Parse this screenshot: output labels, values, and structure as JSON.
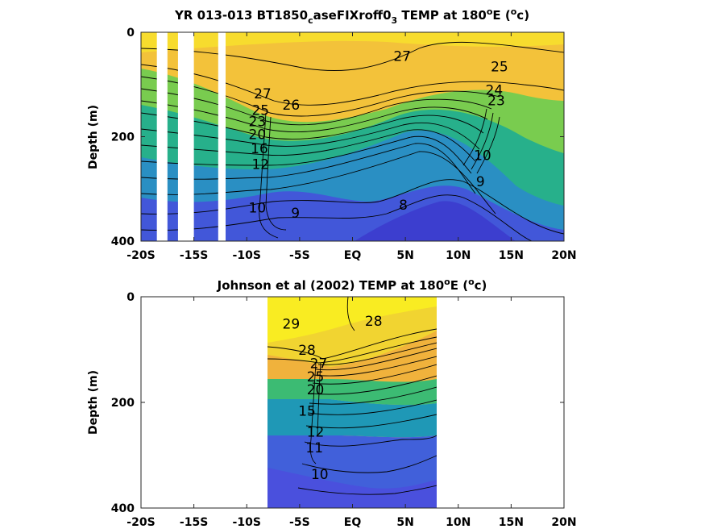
{
  "chart_data": [
    {
      "type": "heatmap",
      "title": "YR 013-013 BT1850",
      "title_sub": "c",
      "title_mid": "aseFIXroff0",
      "title_sub2": "3",
      "title_tail": " TEMP at 180",
      "title_sup": "o",
      "title_end": "E (",
      "title_sup2": "o",
      "title_close": "c)",
      "ylabel": "Depth (m)",
      "xlim": [
        -20,
        20
      ],
      "ylim": [
        0,
        400
      ],
      "y_reversed": true,
      "x_ticks": [
        -20,
        -15,
        -10,
        -5,
        0,
        5,
        10,
        15,
        20
      ],
      "x_tick_labels": [
        "-20S",
        "-15S",
        "-10S",
        "-5S",
        "EQ",
        "5N",
        "10N",
        "15N",
        "20N"
      ],
      "y_ticks": [
        0,
        200,
        400
      ],
      "y_tick_labels": [
        "0",
        "200",
        "400"
      ],
      "data_extent": [
        -20,
        20
      ],
      "missing_lat_bands": [
        [
          -18.5,
          -17.5
        ],
        [
          -16.5,
          -15.0
        ],
        [
          -12.7,
          -12.0
        ]
      ],
      "contour_interval": 1,
      "contour_labels": [
        {
          "lat": 4.7,
          "depth": 55,
          "text": "27"
        },
        {
          "lat": 13.9,
          "depth": 75,
          "text": "25"
        },
        {
          "lat": 13.4,
          "depth": 120,
          "text": "24"
        },
        {
          "lat": 13.6,
          "depth": 140,
          "text": "23"
        },
        {
          "lat": -8.5,
          "depth": 127,
          "text": "27"
        },
        {
          "lat": -8.7,
          "depth": 158,
          "text": "25"
        },
        {
          "lat": -5.8,
          "depth": 148,
          "text": "26"
        },
        {
          "lat": -9.0,
          "depth": 180,
          "text": "23"
        },
        {
          "lat": -9.0,
          "depth": 205,
          "text": "20"
        },
        {
          "lat": -8.8,
          "depth": 232,
          "text": "16"
        },
        {
          "lat": -8.7,
          "depth": 262,
          "text": "12"
        },
        {
          "lat": -9.0,
          "depth": 345,
          "text": "10"
        },
        {
          "lat": -5.4,
          "depth": 355,
          "text": "9"
        },
        {
          "lat": 4.8,
          "depth": 340,
          "text": "8"
        },
        {
          "lat": 12.1,
          "depth": 295,
          "text": "9"
        },
        {
          "lat": 12.3,
          "depth": 245,
          "text": "10"
        }
      ]
    },
    {
      "type": "heatmap",
      "title": "Johnson et al (2002) TEMP at 180",
      "title_sup": "o",
      "title_end": "E (",
      "title_sup2": "o",
      "title_close": "c)",
      "ylabel": "Depth (m)",
      "xlim": [
        -20,
        20
      ],
      "ylim": [
        0,
        400
      ],
      "y_reversed": true,
      "x_ticks": [
        -20,
        -15,
        -10,
        -5,
        0,
        5,
        10,
        15,
        20
      ],
      "x_tick_labels": [
        "-20S",
        "-15S",
        "-10S",
        "-5S",
        "EQ",
        "5N",
        "10N",
        "15N",
        "20N"
      ],
      "y_ticks": [
        0,
        200,
        400
      ],
      "y_tick_labels": [
        "0",
        "200",
        "400"
      ],
      "data_extent": [
        -8,
        8
      ],
      "contour_interval": 1,
      "contour_labels": [
        {
          "lat": -5.8,
          "depth": 60,
          "text": "29"
        },
        {
          "lat": 2.0,
          "depth": 55,
          "text": "28"
        },
        {
          "lat": -4.3,
          "depth": 110,
          "text": "28"
        },
        {
          "lat": -3.2,
          "depth": 135,
          "text": "27"
        },
        {
          "lat": -3.5,
          "depth": 160,
          "text": "25"
        },
        {
          "lat": -3.5,
          "depth": 185,
          "text": "20"
        },
        {
          "lat": -4.3,
          "depth": 225,
          "text": "15"
        },
        {
          "lat": -3.5,
          "depth": 265,
          "text": "12"
        },
        {
          "lat": -3.6,
          "depth": 295,
          "text": "11"
        },
        {
          "lat": -3.1,
          "depth": 345,
          "text": "10"
        }
      ]
    }
  ],
  "colors": {
    "warm": "#f6e826",
    "orange": "#f5b43a",
    "green": "#35bc78",
    "teal": "#1e9fae",
    "blue": "#3f63d9",
    "deep": "#3a3fcc"
  }
}
